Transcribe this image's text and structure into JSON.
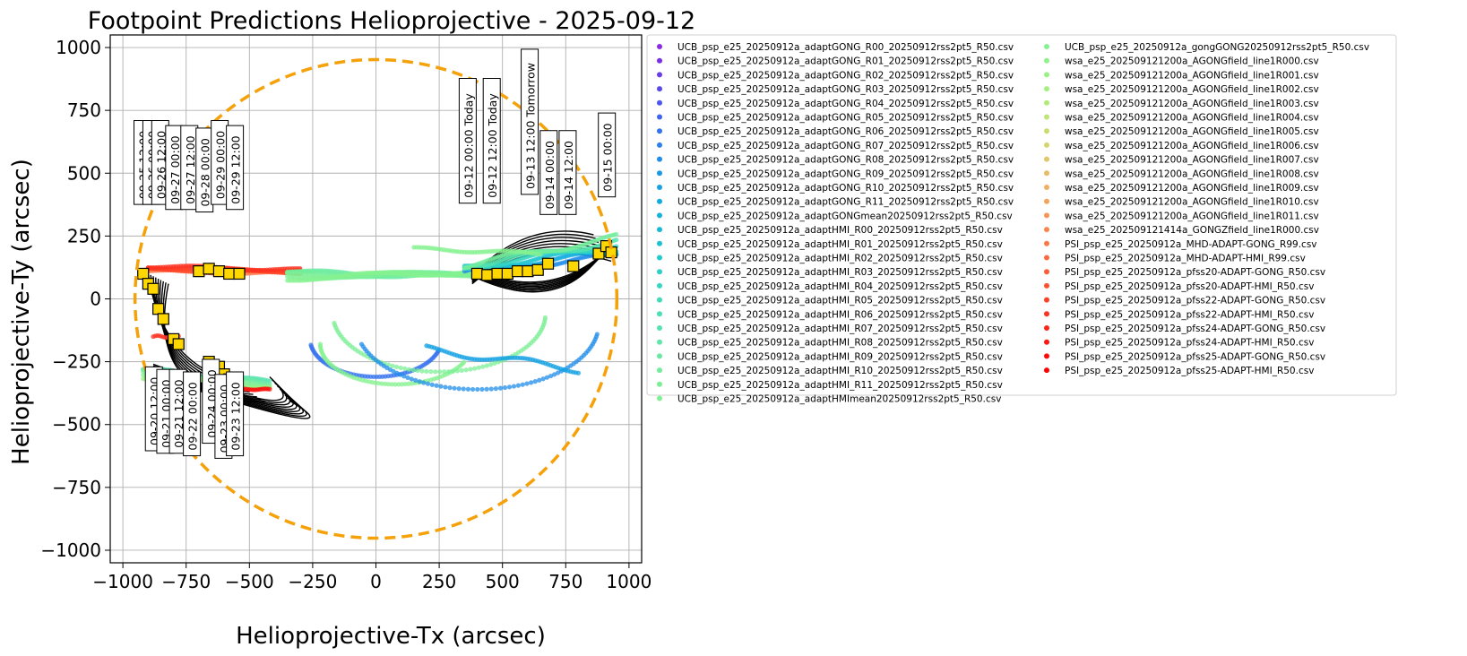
{
  "chart_data": {
    "type": "scatter",
    "title": "Footpoint Predictions Helioprojective - 2025-09-12",
    "xlabel": "Helioprojective-Tx (arcsec)",
    "ylabel": "Helioprojective-Ty (arcsec)",
    "xlim": [
      -1050,
      1050
    ],
    "ylim": [
      -1050,
      1050
    ],
    "xticks": [
      -1000,
      -750,
      -500,
      -250,
      0,
      250,
      500,
      750,
      1000
    ],
    "yticks": [
      -1000,
      -750,
      -500,
      -250,
      0,
      250,
      500,
      750,
      1000
    ],
    "xtick_labels": [
      "−1000",
      "−750",
      "−500",
      "−250",
      "0",
      "250",
      "500",
      "750",
      "1000"
    ],
    "ytick_labels": [
      "−1000",
      "−750",
      "−500",
      "−250",
      "0",
      "250",
      "500",
      "750",
      "1000"
    ],
    "grid": true,
    "solar_limb_radius": 952,
    "solar_limb_color": "#f5a10a",
    "legend_position": "outside-right",
    "legend": [
      {
        "name": "UCB_psp_e25_20250912a_adaptGONG_R00_20250912rss2pt5_R50.csv",
        "color": "#8a2be2"
      },
      {
        "name": "UCB_psp_e25_20250912a_adaptGONG_R01_20250912rss2pt5_R50.csv",
        "color": "#7a30e8"
      },
      {
        "name": "UCB_psp_e25_20250912a_adaptGONG_R02_20250912rss2pt5_R50.csv",
        "color": "#6a3bec"
      },
      {
        "name": "UCB_psp_e25_20250912a_adaptGONG_R03_20250912rss2pt5_R50.csv",
        "color": "#5a48ee"
      },
      {
        "name": "UCB_psp_e25_20250912a_adaptGONG_R04_20250912rss2pt5_R50.csv",
        "color": "#4c56f0"
      },
      {
        "name": "UCB_psp_e25_20250912a_adaptGONG_R05_20250912rss2pt5_R50.csv",
        "color": "#3e64f0"
      },
      {
        "name": "UCB_psp_e25_20250912a_adaptGONG_R06_20250912rss2pt5_R50.csv",
        "color": "#3472ef"
      },
      {
        "name": "UCB_psp_e25_20250912a_adaptGONG_R07_20250912rss2pt5_R50.csv",
        "color": "#2a80ee"
      },
      {
        "name": "UCB_psp_e25_20250912a_adaptGONG_R08_20250912rss2pt5_R50.csv",
        "color": "#208dea"
      },
      {
        "name": "UCB_psp_e25_20250912a_adaptGONG_R09_20250912rss2pt5_R50.csv",
        "color": "#1a98e6"
      },
      {
        "name": "UCB_psp_e25_20250912a_adaptGONG_R10_20250912rss2pt5_R50.csv",
        "color": "#15a2e3"
      },
      {
        "name": "UCB_psp_e25_20250912a_adaptGONG_R11_20250912rss2pt5_R50.csv",
        "color": "#12abe0"
      },
      {
        "name": "UCB_psp_e25_20250912a_adaptGONGmean20250912rss2pt5_R50.csv",
        "color": "#12b4dc"
      },
      {
        "name": "UCB_psp_e25_20250912a_adaptHMI_R00_20250912rss2pt5_R50.csv",
        "color": "#16bcd7"
      },
      {
        "name": "UCB_psp_e25_20250912a_adaptHMI_R01_20250912rss2pt5_R50.csv",
        "color": "#1cc3d2"
      },
      {
        "name": "UCB_psp_e25_20250912a_adaptHMI_R02_20250912rss2pt5_R50.csv",
        "color": "#24cacc"
      },
      {
        "name": "UCB_psp_e25_20250912a_adaptHMI_R03_20250912rss2pt5_R50.csv",
        "color": "#2cd0c6"
      },
      {
        "name": "UCB_psp_e25_20250912a_adaptHMI_R04_20250912rss2pt5_R50.csv",
        "color": "#36d6c0"
      },
      {
        "name": "UCB_psp_e25_20250912a_adaptHMI_R05_20250912rss2pt5_R50.csv",
        "color": "#40dbba"
      },
      {
        "name": "UCB_psp_e25_20250912a_adaptHMI_R06_20250912rss2pt5_R50.csv",
        "color": "#4adfb4"
      },
      {
        "name": "UCB_psp_e25_20250912a_adaptHMI_R07_20250912rss2pt5_R50.csv",
        "color": "#54e3ae"
      },
      {
        "name": "UCB_psp_e25_20250912a_adaptHMI_R08_20250912rss2pt5_R50.csv",
        "color": "#5ee7a8"
      },
      {
        "name": "UCB_psp_e25_20250912a_adaptHMI_R09_20250912rss2pt5_R50.csv",
        "color": "#68eaa2"
      },
      {
        "name": "UCB_psp_e25_20250912a_adaptHMI_R10_20250912rss2pt5_R50.csv",
        "color": "#72ed9c"
      },
      {
        "name": "UCB_psp_e25_20250912a_adaptHMI_R11_20250912rss2pt5_R50.csv",
        "color": "#7cef96"
      },
      {
        "name": "UCB_psp_e25_20250912a_adaptHMImean20250912rss2pt5_R50.csv",
        "color": "#80f094"
      },
      {
        "name": "UCB_psp_e25_20250912a_gongGONG20250912rss2pt5_R50.csv",
        "color": "#86f190"
      },
      {
        "name": "wsa_e25_202509121200a_AGONGfield_line1R000.csv",
        "color": "#90f28a"
      },
      {
        "name": "wsa_e25_202509121200a_AGONGfield_line1R001.csv",
        "color": "#9af284"
      },
      {
        "name": "wsa_e25_202509121200a_AGONGfield_line1R002.csv",
        "color": "#a6f07e"
      },
      {
        "name": "wsa_e25_202509121200a_AGONGfield_line1R003.csv",
        "color": "#b2ec78"
      },
      {
        "name": "wsa_e25_202509121200a_AGONGfield_line1R004.csv",
        "color": "#bee674"
      },
      {
        "name": "wsa_e25_202509121200a_AGONGfield_line1R005.csv",
        "color": "#cade70"
      },
      {
        "name": "wsa_e25_202509121200a_AGONGfield_line1R006.csv",
        "color": "#d6d46c"
      },
      {
        "name": "wsa_e25_202509121200a_AGONGfield_line1R007.csv",
        "color": "#e0c868"
      },
      {
        "name": "wsa_e25_202509121200a_AGONGfield_line1R008.csv",
        "color": "#e8bc64"
      },
      {
        "name": "wsa_e25_202509121200a_AGONGfield_line1R009.csv",
        "color": "#f0b060"
      },
      {
        "name": "wsa_e25_202509121200a_AGONGfield_line1R010.csv",
        "color": "#f6a25a"
      },
      {
        "name": "wsa_e25_202509121200a_AGONGfield_line1R011.csv",
        "color": "#fa9454"
      },
      {
        "name": "wsa_e25_202509121414a_GONGZfield_line1R000.csv",
        "color": "#fc864e"
      },
      {
        "name": "PSI_psp_e25_20250912a_MHD-ADAPT-GONG_R99.csv",
        "color": "#fd7848"
      },
      {
        "name": "PSI_psp_e25_20250912a_MHD-ADAPT-HMI_R99.csv",
        "color": "#fe6a40"
      },
      {
        "name": "PSI_psp_e25_20250912a_pfss20-ADAPT-GONG_R50.csv",
        "color": "#fe5c38"
      },
      {
        "name": "PSI_psp_e25_20250912a_pfss20-ADAPT-HMI_R50.csv",
        "color": "#fe4e30"
      },
      {
        "name": "PSI_psp_e25_20250912a_pfss22-ADAPT-GONG_R50.csv",
        "color": "#fe4028"
      },
      {
        "name": "PSI_psp_e25_20250912a_pfss22-ADAPT-HMI_R50.csv",
        "color": "#fe3220"
      },
      {
        "name": "PSI_psp_e25_20250912a_pfss24-ADAPT-GONG_R50.csv",
        "color": "#fe2418"
      },
      {
        "name": "PSI_psp_e25_20250912a_pfss24-ADAPT-HMI_R50.csv",
        "color": "#fe1610"
      },
      {
        "name": "PSI_psp_e25_20250912a_pfss25-ADAPT-GONG_R50.csv",
        "color": "#fe0a08"
      },
      {
        "name": "PSI_psp_e25_20250912a_pfss25-ADAPT-HMI_R50.csv",
        "color": "#ff0000"
      }
    ],
    "footpoint_markers": {
      "color": "#ffd700",
      "points": [
        [
          -920,
          100
        ],
        [
          -900,
          60
        ],
        [
          -880,
          40
        ],
        [
          -860,
          -40
        ],
        [
          -840,
          -80
        ],
        [
          -800,
          -160
        ],
        [
          -780,
          -180
        ],
        [
          -660,
          -250
        ],
        [
          -620,
          -270
        ],
        [
          -600,
          -300
        ],
        [
          -580,
          -320
        ],
        [
          -560,
          -340
        ],
        [
          -700,
          110
        ],
        [
          -660,
          120
        ],
        [
          -620,
          110
        ],
        [
          -580,
          100
        ],
        [
          -540,
          100
        ],
        [
          400,
          100
        ],
        [
          440,
          95
        ],
        [
          480,
          100
        ],
        [
          520,
          100
        ],
        [
          560,
          110
        ],
        [
          600,
          110
        ],
        [
          640,
          115
        ],
        [
          680,
          140
        ],
        [
          780,
          130
        ],
        [
          880,
          180
        ],
        [
          910,
          210
        ],
        [
          930,
          185
        ]
      ]
    },
    "date_labels": [
      {
        "text": "09-12 00:00 Today",
        "x": 375,
        "y": 395
      },
      {
        "text": "09-12 12:00 Today",
        "x": 470,
        "y": 395
      },
      {
        "text": "09-13 12:00 Tomorrow",
        "x": 620,
        "y": 430
      },
      {
        "text": "09-14 00:00",
        "x": 695,
        "y": 350
      },
      {
        "text": "09-14 12:00",
        "x": 770,
        "y": 350
      },
      {
        "text": "09-15 00:00",
        "x": 925,
        "y": 420
      },
      {
        "text": "09-25 12:00",
        "x": -910,
        "y": 390
      },
      {
        "text": "09-26 00:00",
        "x": -875,
        "y": 390
      },
      {
        "text": "09-26 12:00",
        "x": -840,
        "y": 390
      },
      {
        "text": "09-27 00:00",
        "x": -785,
        "y": 370
      },
      {
        "text": "09-27 12:00",
        "x": -725,
        "y": 370
      },
      {
        "text": "09-28 00:00",
        "x": -665,
        "y": 360
      },
      {
        "text": "09-29 00:00",
        "x": -605,
        "y": 390
      },
      {
        "text": "09-29 12:00",
        "x": -545,
        "y": 370
      },
      {
        "text": "09-20 12:00",
        "x": -865,
        "y": -590
      },
      {
        "text": "09-21 00:00",
        "x": -820,
        "y": -600
      },
      {
        "text": "09-21 12:00",
        "x": -770,
        "y": -600
      },
      {
        "text": "09-22 00:00",
        "x": -715,
        "y": -610
      },
      {
        "text": "09-24 00:00",
        "x": -640,
        "y": -560
      },
      {
        "text": "09-23 00:00",
        "x": -590,
        "y": -620
      },
      {
        "text": "09-23 12:00",
        "x": -545,
        "y": -610
      }
    ]
  }
}
